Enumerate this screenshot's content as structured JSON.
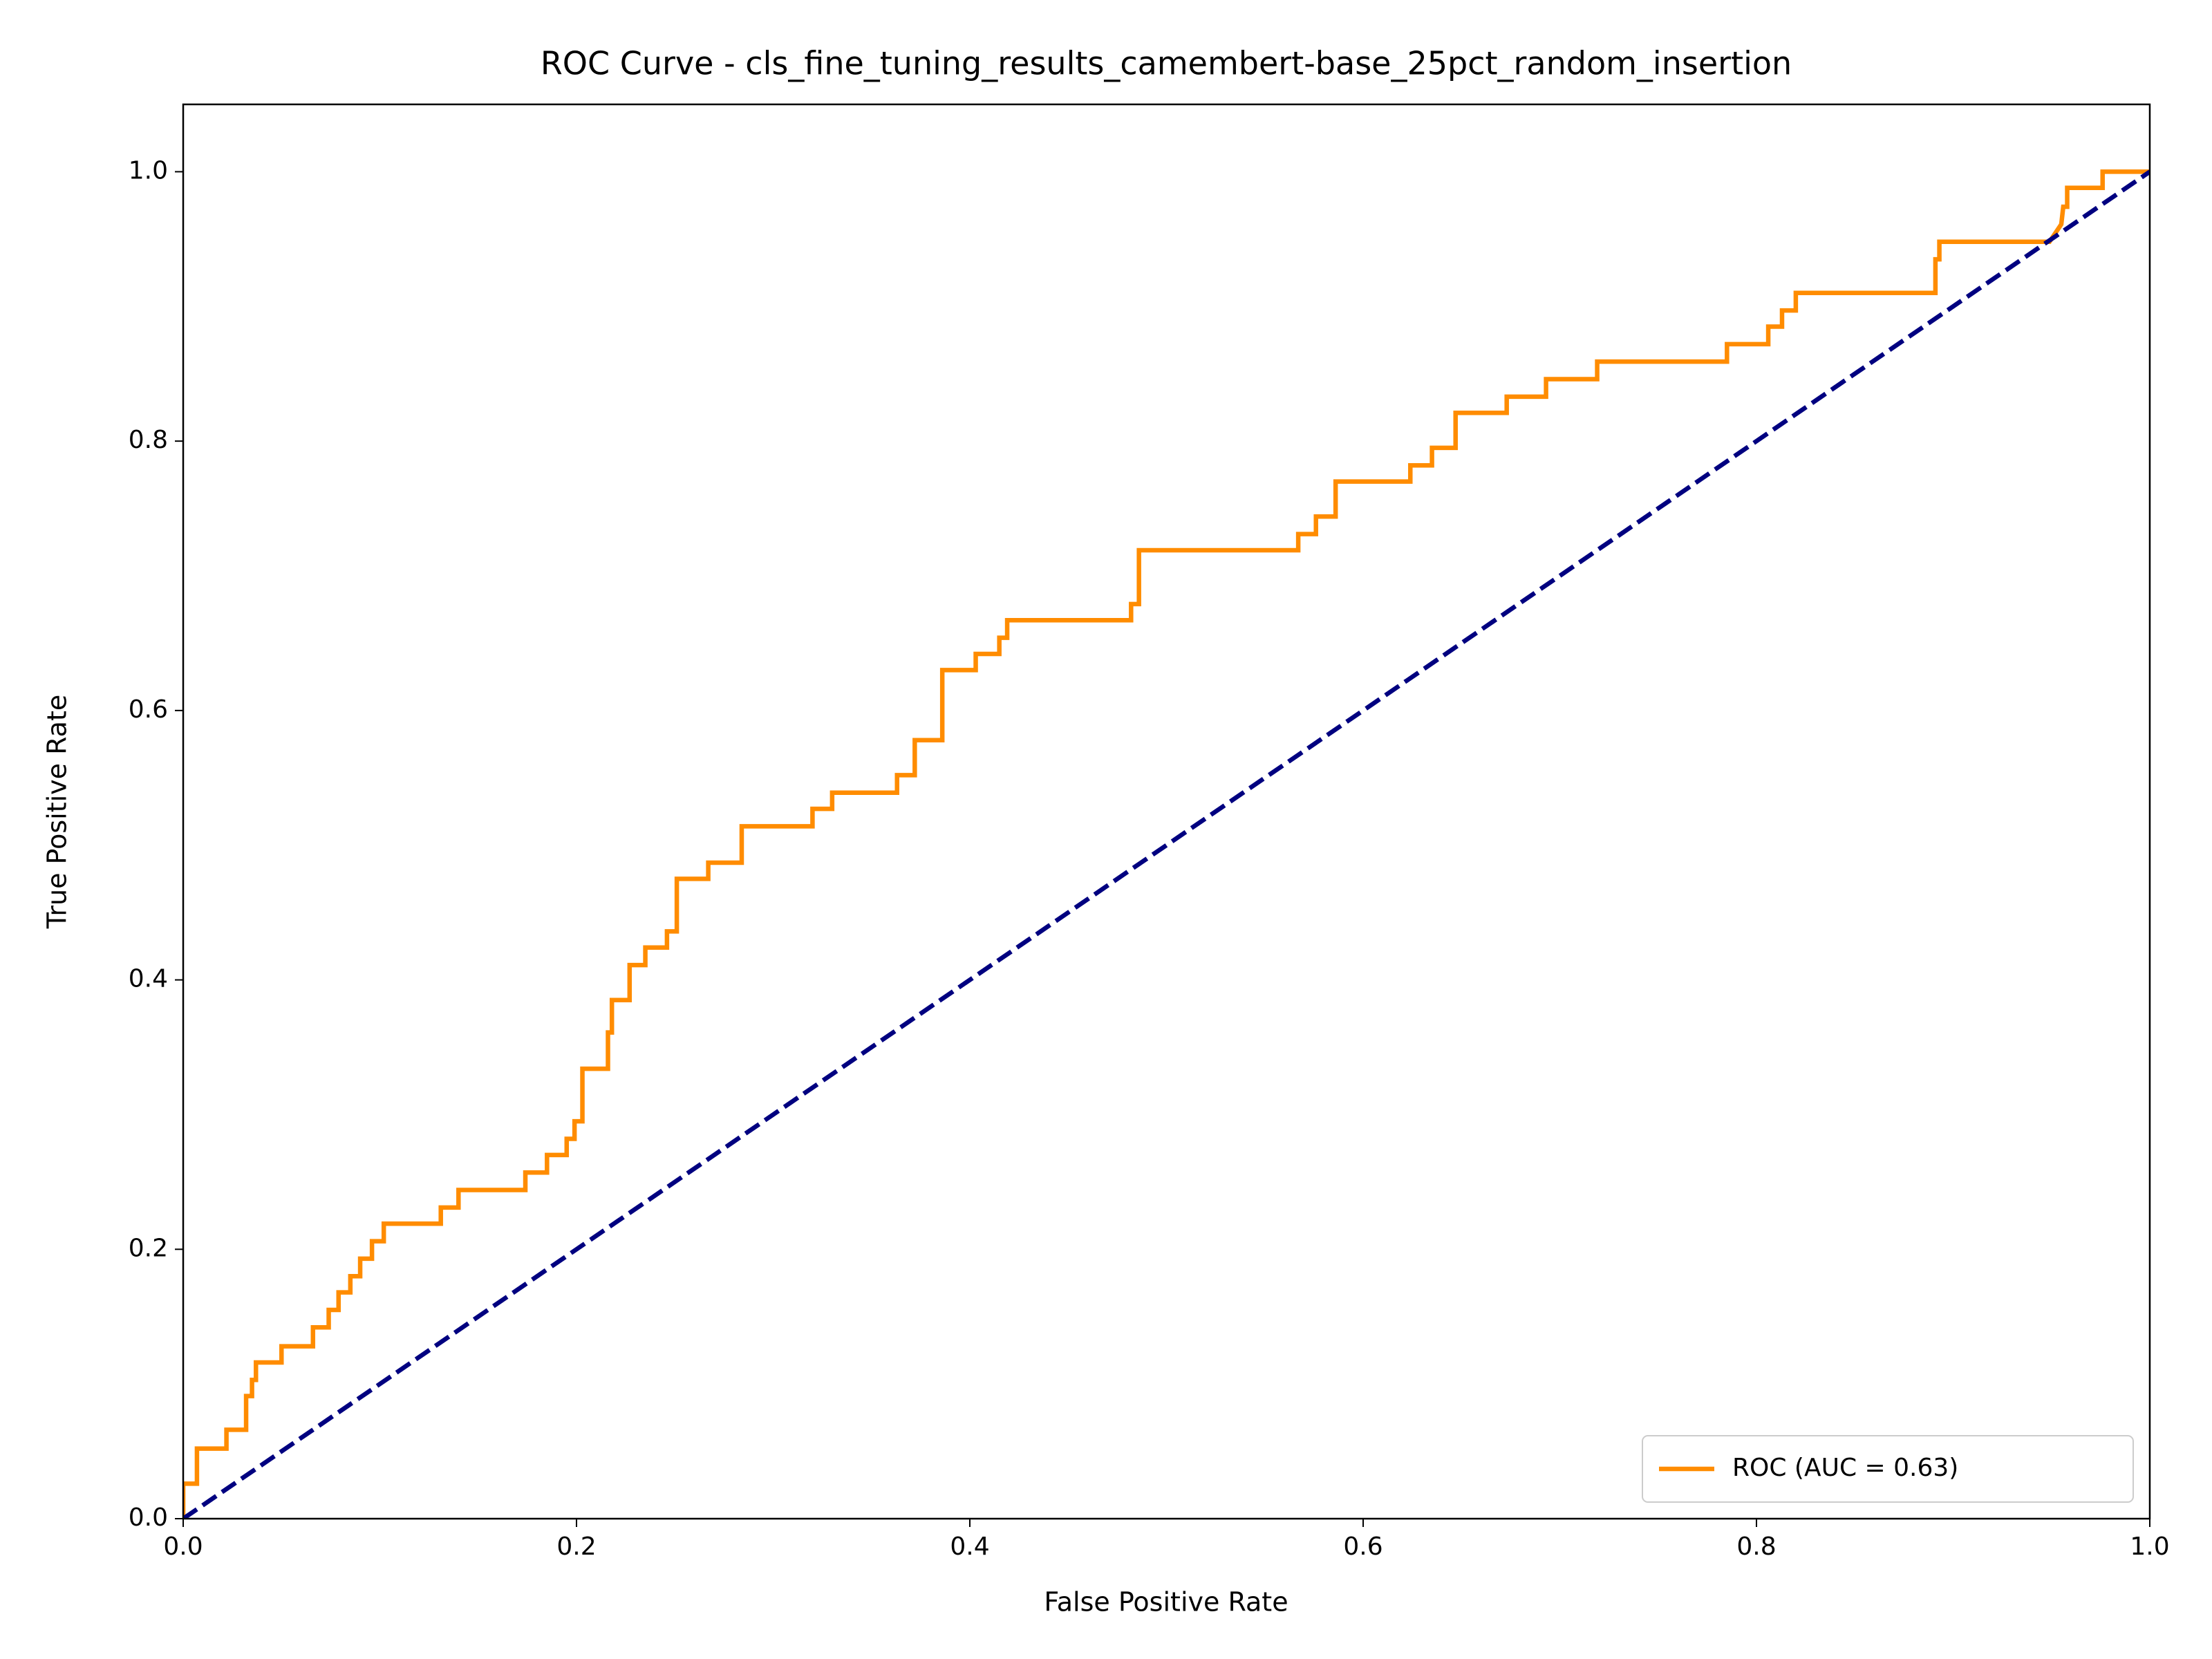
{
  "chart_data": {
    "type": "line",
    "title": "ROC Curve - cls_fine_tuning_results_camembert-base_25pct_random_insertion",
    "x_label": "False Positive Rate",
    "y_label": "True Positive Rate",
    "xlim": [
      0,
      1
    ],
    "ylim": [
      0,
      1.05
    ],
    "xticks": [
      {
        "value": 0,
        "label": "0.0"
      },
      0.2,
      0.4,
      0.6,
      0.8,
      {
        "value": 1,
        "label": "1.0"
      }
    ],
    "yticks": [
      {
        "value": 0,
        "label": "0.0"
      },
      0.2,
      0.4,
      0.6,
      0.8,
      {
        "value": 1,
        "label": "1.0"
      }
    ],
    "grid": false,
    "legend": "lower right",
    "series": [
      {
        "name": "ROC (AUC = 0.63)",
        "color": "#ff8c00",
        "linestyle": "solid",
        "x": [
          0,
          0,
          0.007,
          0.007,
          0.022,
          0.022,
          0.032,
          0.032,
          0.035,
          0.035,
          0.037,
          0.037,
          0.05,
          0.05,
          0.066,
          0.066,
          0.074,
          0.074,
          0.079,
          0.079,
          0.085,
          0.085,
          0.09,
          0.09,
          0.096,
          0.096,
          0.102,
          0.102,
          0.131,
          0.131,
          0.14,
          0.14,
          0.174,
          0.174,
          0.185,
          0.185,
          0.195,
          0.195,
          0.199,
          0.199,
          0.203,
          0.203,
          0.216,
          0.216,
          0.218,
          0.218,
          0.227,
          0.227,
          0.235,
          0.235,
          0.246,
          0.246,
          0.251,
          0.251,
          0.267,
          0.267,
          0.284,
          0.284,
          0.32,
          0.32,
          0.33,
          0.33,
          0.363,
          0.363,
          0.372,
          0.372,
          0.386,
          0.386,
          0.403,
          0.403,
          0.415,
          0.415,
          0.419,
          0.419,
          0.482,
          0.482,
          0.486,
          0.486,
          0.567,
          0.567,
          0.576,
          0.576,
          0.586,
          0.586,
          0.624,
          0.624,
          0.635,
          0.635,
          0.647,
          0.647,
          0.673,
          0.673,
          0.693,
          0.693,
          0.719,
          0.719,
          0.785,
          0.785,
          0.806,
          0.806,
          0.813,
          0.813,
          0.82,
          0.82,
          0.891,
          0.891,
          0.893,
          0.893,
          0.949,
          0.955,
          0.956,
          0.958,
          0.958,
          0.976,
          0.976,
          1
        ],
        "values": [
          0,
          0.026,
          0.026,
          0.052,
          0.052,
          0.066,
          0.066,
          0.091,
          0.091,
          0.103,
          0.103,
          0.116,
          0.116,
          0.128,
          0.128,
          0.142,
          0.142,
          0.155,
          0.155,
          0.168,
          0.168,
          0.18,
          0.18,
          0.193,
          0.193,
          0.206,
          0.206,
          0.219,
          0.219,
          0.231,
          0.231,
          0.244,
          0.244,
          0.257,
          0.257,
          0.27,
          0.27,
          0.282,
          0.282,
          0.295,
          0.295,
          0.334,
          0.334,
          0.361,
          0.361,
          0.385,
          0.385,
          0.411,
          0.411,
          0.424,
          0.424,
          0.436,
          0.436,
          0.475,
          0.475,
          0.487,
          0.487,
          0.514,
          0.514,
          0.527,
          0.527,
          0.539,
          0.539,
          0.552,
          0.552,
          0.578,
          0.578,
          0.63,
          0.63,
          0.642,
          0.642,
          0.654,
          0.654,
          0.667,
          0.667,
          0.679,
          0.679,
          0.719,
          0.719,
          0.731,
          0.731,
          0.744,
          0.744,
          0.77,
          0.77,
          0.782,
          0.782,
          0.795,
          0.795,
          0.821,
          0.821,
          0.833,
          0.833,
          0.846,
          0.846,
          0.859,
          0.859,
          0.872,
          0.872,
          0.885,
          0.885,
          0.897,
          0.897,
          0.91,
          0.91,
          0.935,
          0.935,
          0.948,
          0.948,
          0.961,
          0.974,
          0.974,
          0.988,
          0.988,
          1,
          1
        ]
      },
      {
        "color": "#000080",
        "linestyle": "dashed",
        "x": [
          0,
          1
        ],
        "values": [
          0,
          1
        ]
      }
    ]
  }
}
